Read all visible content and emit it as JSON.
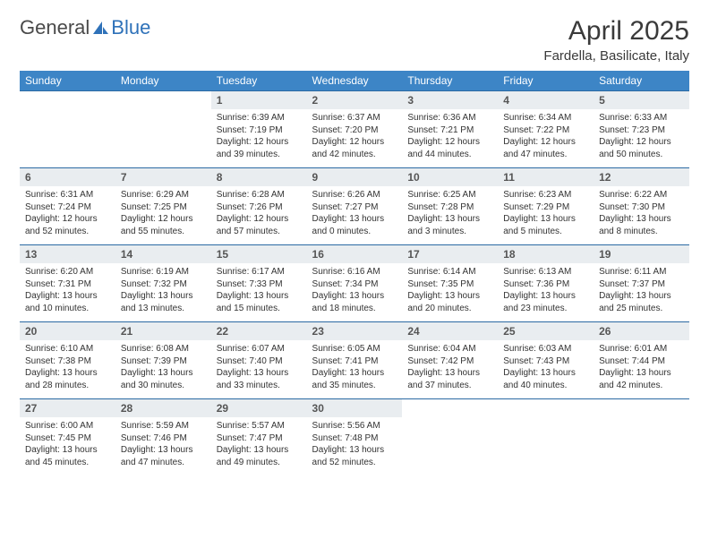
{
  "logo": {
    "part1": "General",
    "part2": "Blue"
  },
  "title": "April 2025",
  "subtitle": "Fardella, Basilicate, Italy",
  "colors": {
    "header_bg": "#3d85c6",
    "header_text": "#ffffff",
    "daynum_bg": "#e9edf0",
    "row_border": "#2b6aa3",
    "logo_gray": "#4a4a4a",
    "logo_blue": "#2f72b9"
  },
  "fonts": {
    "month_title_pt": 30,
    "subtitle_pt": 15,
    "header_cell_pt": 12,
    "daynum_pt": 12,
    "daybody_pt": 10
  },
  "weekdays": [
    "Sunday",
    "Monday",
    "Tuesday",
    "Wednesday",
    "Thursday",
    "Friday",
    "Saturday"
  ],
  "first_weekday_index": 2,
  "days": [
    {
      "n": 1,
      "sunrise": "6:39 AM",
      "sunset": "7:19 PM",
      "daylight": "12 hours and 39 minutes."
    },
    {
      "n": 2,
      "sunrise": "6:37 AM",
      "sunset": "7:20 PM",
      "daylight": "12 hours and 42 minutes."
    },
    {
      "n": 3,
      "sunrise": "6:36 AM",
      "sunset": "7:21 PM",
      "daylight": "12 hours and 44 minutes."
    },
    {
      "n": 4,
      "sunrise": "6:34 AM",
      "sunset": "7:22 PM",
      "daylight": "12 hours and 47 minutes."
    },
    {
      "n": 5,
      "sunrise": "6:33 AM",
      "sunset": "7:23 PM",
      "daylight": "12 hours and 50 minutes."
    },
    {
      "n": 6,
      "sunrise": "6:31 AM",
      "sunset": "7:24 PM",
      "daylight": "12 hours and 52 minutes."
    },
    {
      "n": 7,
      "sunrise": "6:29 AM",
      "sunset": "7:25 PM",
      "daylight": "12 hours and 55 minutes."
    },
    {
      "n": 8,
      "sunrise": "6:28 AM",
      "sunset": "7:26 PM",
      "daylight": "12 hours and 57 minutes."
    },
    {
      "n": 9,
      "sunrise": "6:26 AM",
      "sunset": "7:27 PM",
      "daylight": "13 hours and 0 minutes."
    },
    {
      "n": 10,
      "sunrise": "6:25 AM",
      "sunset": "7:28 PM",
      "daylight": "13 hours and 3 minutes."
    },
    {
      "n": 11,
      "sunrise": "6:23 AM",
      "sunset": "7:29 PM",
      "daylight": "13 hours and 5 minutes."
    },
    {
      "n": 12,
      "sunrise": "6:22 AM",
      "sunset": "7:30 PM",
      "daylight": "13 hours and 8 minutes."
    },
    {
      "n": 13,
      "sunrise": "6:20 AM",
      "sunset": "7:31 PM",
      "daylight": "13 hours and 10 minutes."
    },
    {
      "n": 14,
      "sunrise": "6:19 AM",
      "sunset": "7:32 PM",
      "daylight": "13 hours and 13 minutes."
    },
    {
      "n": 15,
      "sunrise": "6:17 AM",
      "sunset": "7:33 PM",
      "daylight": "13 hours and 15 minutes."
    },
    {
      "n": 16,
      "sunrise": "6:16 AM",
      "sunset": "7:34 PM",
      "daylight": "13 hours and 18 minutes."
    },
    {
      "n": 17,
      "sunrise": "6:14 AM",
      "sunset": "7:35 PM",
      "daylight": "13 hours and 20 minutes."
    },
    {
      "n": 18,
      "sunrise": "6:13 AM",
      "sunset": "7:36 PM",
      "daylight": "13 hours and 23 minutes."
    },
    {
      "n": 19,
      "sunrise": "6:11 AM",
      "sunset": "7:37 PM",
      "daylight": "13 hours and 25 minutes."
    },
    {
      "n": 20,
      "sunrise": "6:10 AM",
      "sunset": "7:38 PM",
      "daylight": "13 hours and 28 minutes."
    },
    {
      "n": 21,
      "sunrise": "6:08 AM",
      "sunset": "7:39 PM",
      "daylight": "13 hours and 30 minutes."
    },
    {
      "n": 22,
      "sunrise": "6:07 AM",
      "sunset": "7:40 PM",
      "daylight": "13 hours and 33 minutes."
    },
    {
      "n": 23,
      "sunrise": "6:05 AM",
      "sunset": "7:41 PM",
      "daylight": "13 hours and 35 minutes."
    },
    {
      "n": 24,
      "sunrise": "6:04 AM",
      "sunset": "7:42 PM",
      "daylight": "13 hours and 37 minutes."
    },
    {
      "n": 25,
      "sunrise": "6:03 AM",
      "sunset": "7:43 PM",
      "daylight": "13 hours and 40 minutes."
    },
    {
      "n": 26,
      "sunrise": "6:01 AM",
      "sunset": "7:44 PM",
      "daylight": "13 hours and 42 minutes."
    },
    {
      "n": 27,
      "sunrise": "6:00 AM",
      "sunset": "7:45 PM",
      "daylight": "13 hours and 45 minutes."
    },
    {
      "n": 28,
      "sunrise": "5:59 AM",
      "sunset": "7:46 PM",
      "daylight": "13 hours and 47 minutes."
    },
    {
      "n": 29,
      "sunrise": "5:57 AM",
      "sunset": "7:47 PM",
      "daylight": "13 hours and 49 minutes."
    },
    {
      "n": 30,
      "sunrise": "5:56 AM",
      "sunset": "7:48 PM",
      "daylight": "13 hours and 52 minutes."
    }
  ],
  "labels": {
    "sunrise": "Sunrise:",
    "sunset": "Sunset:",
    "daylight": "Daylight:"
  }
}
